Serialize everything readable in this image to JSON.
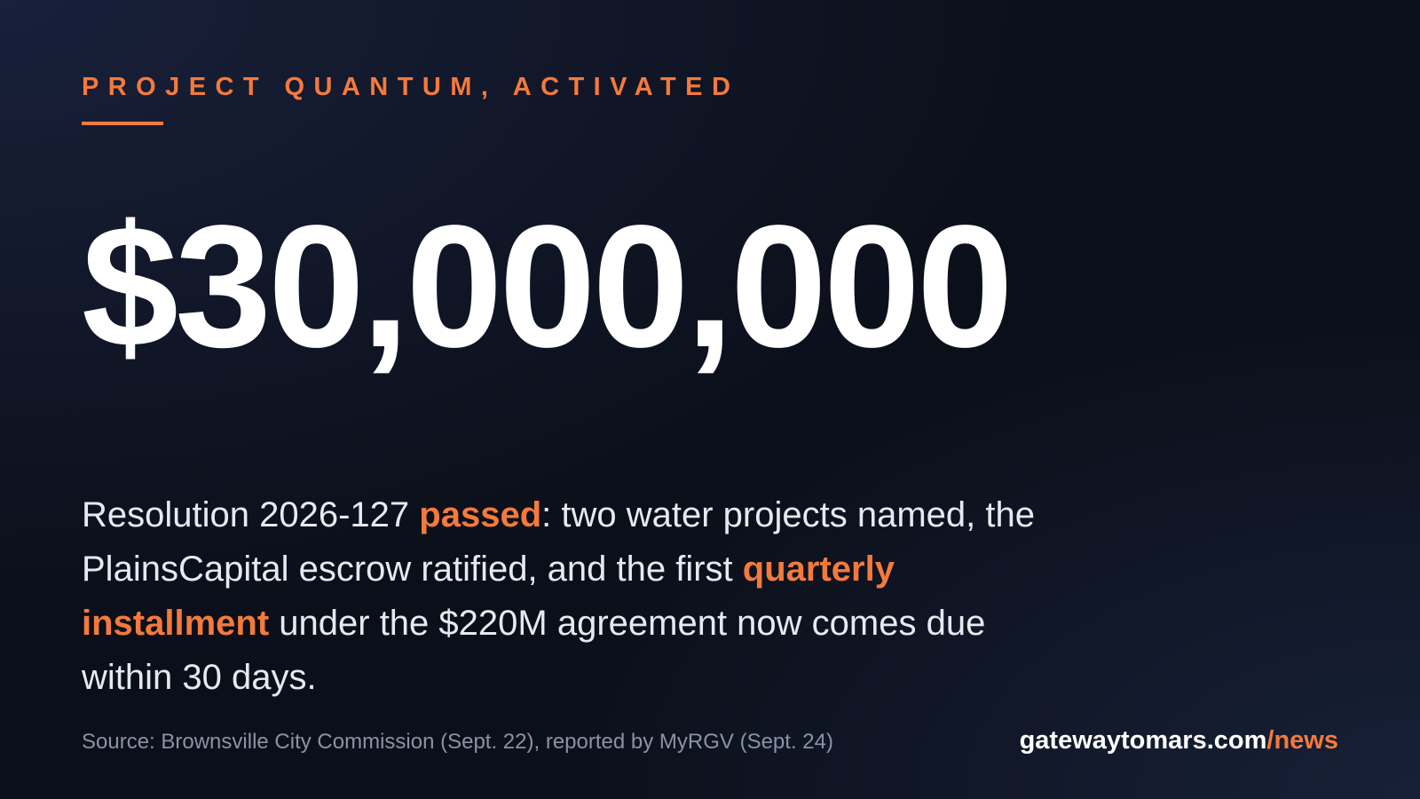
{
  "kicker": "PROJECT QUANTUM, ACTIVATED",
  "headline": "$30,000,000",
  "body": [
    {
      "text": "Resolution 2026-127 ",
      "emphasis": false
    },
    {
      "text": "passed",
      "emphasis": true
    },
    {
      "text": ": two water projects named, the PlainsCapital escrow ratified, and the first ",
      "emphasis": false
    },
    {
      "text": "quarterly installment",
      "emphasis": true
    },
    {
      "text": " under the $220M agreement now comes due within 30 days.",
      "emphasis": false
    }
  ],
  "source": "Source: Brownsville City Commission (Sept. 22), reported by MyRGV (Sept. 24)",
  "site": {
    "domain": "gatewaytomars.com",
    "path": "/news"
  }
}
